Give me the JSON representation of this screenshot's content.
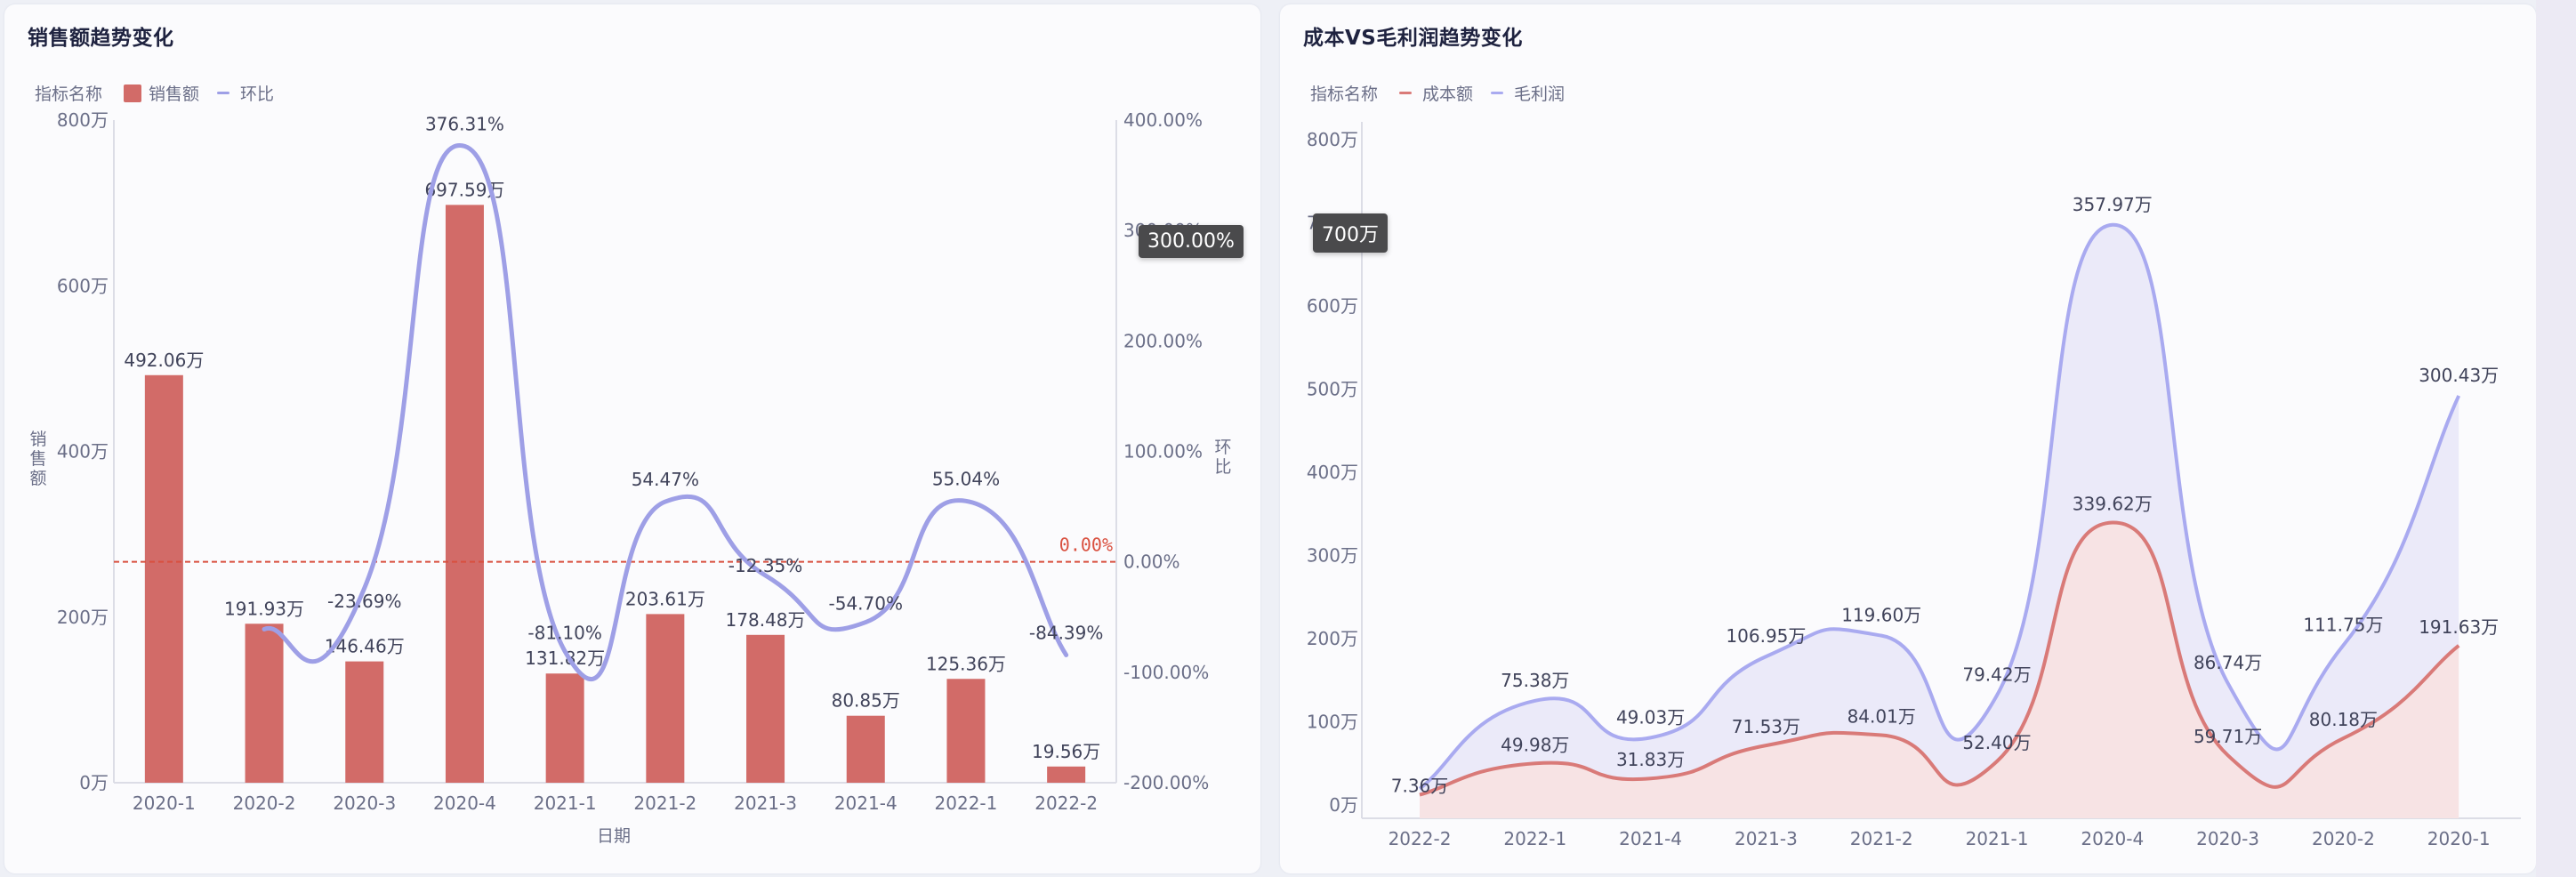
{
  "left_panel": {
    "title": "销售额趋势变化",
    "legend": {
      "title": "指标名称",
      "items": [
        {
          "label": "销售额",
          "color": "#d26b68",
          "shape": "rect"
        },
        {
          "label": "环比",
          "color": "#9e9fe6",
          "shape": "line"
        }
      ]
    },
    "y_axis_left_title": "销售额",
    "y_axis_right_title": "环比",
    "x_axis_title": "日期",
    "tooltip": "300.00%",
    "markline_label": "0.00%"
  },
  "right_panel": {
    "title": "成本VS毛利润趋势变化",
    "legend": {
      "title": "指标名称",
      "items": [
        {
          "label": "成本额",
          "color": "#d97a78",
          "shape": "line"
        },
        {
          "label": "毛利润",
          "color": "#a9aaf0",
          "shape": "line"
        }
      ]
    },
    "tooltip": "700万"
  },
  "chart_data": [
    {
      "type": "bar",
      "title": "销售额趋势变化",
      "xlabel": "日期",
      "ylabel": "销售额",
      "y2label": "环比",
      "categories": [
        "2020-1",
        "2020-2",
        "2020-3",
        "2020-4",
        "2021-1",
        "2021-2",
        "2021-3",
        "2021-4",
        "2022-1",
        "2022-2"
      ],
      "y_ticks": [
        "0万",
        "200万",
        "400万",
        "600万",
        "800万"
      ],
      "y2_ticks": [
        "-200.00%",
        "-100.00%",
        "0.00%",
        "100.00%",
        "200.00%",
        "300.00%",
        "400.00%"
      ],
      "ylim": [
        0,
        800
      ],
      "y2lim": [
        -200,
        400
      ],
      "series": [
        {
          "name": "销售额",
          "type": "bar",
          "unit": "万",
          "color": "#d26b68",
          "values": [
            492.06,
            191.93,
            146.46,
            697.59,
            131.82,
            203.61,
            178.48,
            80.85,
            125.36,
            19.56
          ],
          "labels": [
            "492.06万",
            "191.93万",
            "146.46万",
            "697.59万",
            "131.82万",
            "203.61万",
            "178.48万",
            "80.85万",
            "125.36万",
            "19.56万"
          ]
        },
        {
          "name": "环比",
          "type": "line",
          "unit": "%",
          "color": "#9e9fe6",
          "axis": "right",
          "values": [
            null,
            -60.99,
            -23.69,
            376.31,
            -81.1,
            54.47,
            -12.35,
            -54.7,
            55.04,
            -84.39
          ],
          "labels": [
            "",
            "",
            "-23.69%",
            "376.31%",
            "-81.10%",
            "54.47%",
            "-12.35%",
            "-54.70%",
            "55.04%",
            "-84.39%"
          ]
        }
      ],
      "mark_line": {
        "value": 0,
        "label": "0.00%",
        "color": "#d9503f",
        "style": "dashed"
      },
      "legend_position": "top-left",
      "grid": false
    },
    {
      "type": "area",
      "stacked": true,
      "title": "成本VS毛利润趋势变化",
      "categories": [
        "2022-2",
        "2022-1",
        "2021-4",
        "2021-3",
        "2021-2",
        "2021-1",
        "2020-4",
        "2020-3",
        "2020-2",
        "2020-1"
      ],
      "y_ticks": [
        "0万",
        "100万",
        "200万",
        "300万",
        "400万",
        "500万",
        "600万",
        "700万",
        "800万"
      ],
      "ylim": [
        0,
        800
      ],
      "series": [
        {
          "name": "成本额",
          "unit": "万",
          "color": "#d97a78",
          "values": [
            12.2,
            49.98,
            31.83,
            71.53,
            84.01,
            52.4,
            339.62,
            59.71,
            80.18,
            191.63
          ],
          "labels": [
            "",
            "49.98万",
            "31.83万",
            "71.53万",
            "84.01万",
            "52.40万",
            "339.62万",
            "59.71万",
            "80.18万",
            "191.63万"
          ]
        },
        {
          "name": "毛利润",
          "unit": "万",
          "color": "#a9aaf0",
          "values": [
            7.36,
            75.38,
            49.03,
            106.95,
            119.6,
            79.42,
            357.97,
            86.74,
            111.75,
            300.43
          ],
          "labels": [
            "7.36万",
            "75.38万",
            "49.03万",
            "106.95万",
            "119.60万",
            "79.42万",
            "357.97万",
            "86.74万",
            "111.75万",
            "300.43万"
          ]
        }
      ],
      "legend_position": "top-left",
      "grid": false
    }
  ]
}
